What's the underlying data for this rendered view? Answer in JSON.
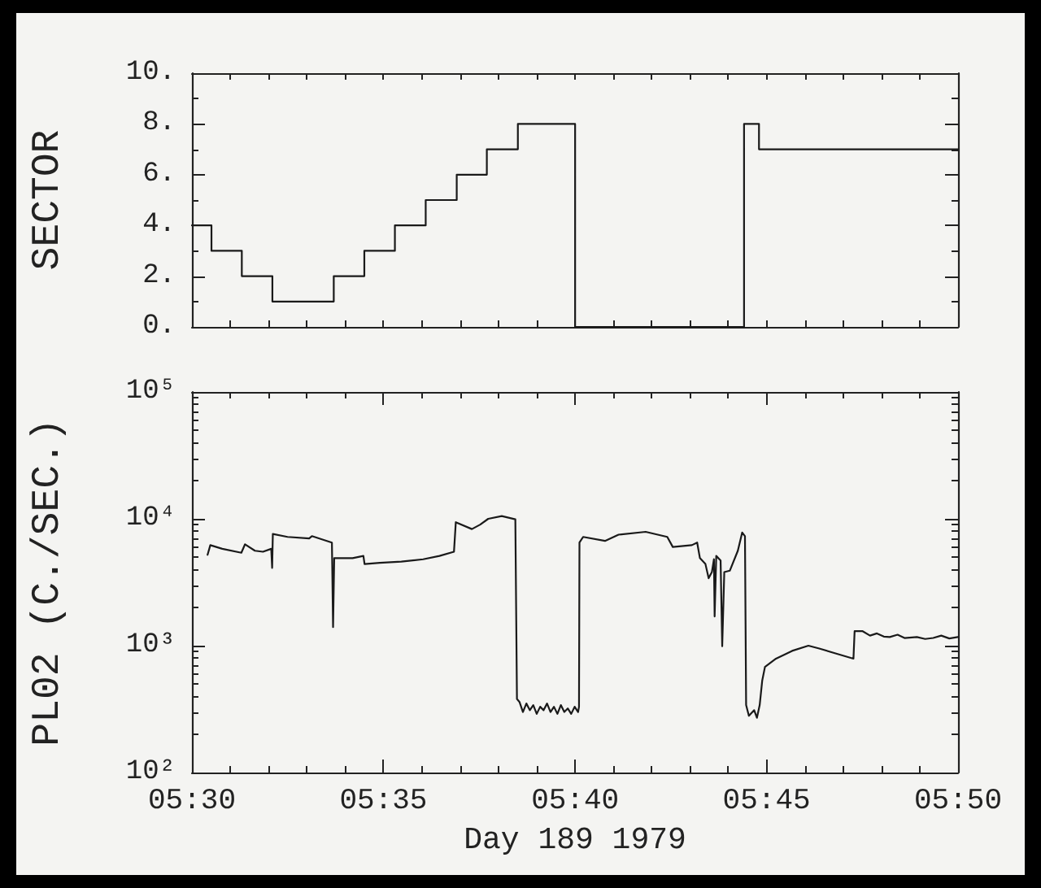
{
  "chart_data": [
    {
      "type": "step",
      "ylabel": "SECTOR",
      "color": "#1a1a1a",
      "tick_labels": "y",
      "x": [
        5.5,
        5.5085,
        5.5217,
        5.535,
        5.5617,
        5.575,
        5.5883,
        5.6017,
        5.6152,
        5.6283,
        5.6418,
        5.6667,
        5.7402,
        5.7467,
        5.8333
      ],
      "values": [
        4,
        3,
        2,
        1,
        2,
        3,
        4,
        5,
        6,
        7,
        8,
        0,
        8,
        7,
        7
      ],
      "xlim": [
        5.5,
        5.8333
      ],
      "xticks": [
        {
          "value": 5.5,
          "label": null
        },
        {
          "value": 5.5167,
          "label": null
        },
        {
          "value": 5.5333,
          "label": null
        },
        {
          "value": 5.55,
          "label": null
        },
        {
          "value": 5.5667,
          "label": null
        },
        {
          "value": 5.5833,
          "label": null
        },
        {
          "value": 5.6,
          "label": null
        },
        {
          "value": 5.6167,
          "label": null
        },
        {
          "value": 5.6333,
          "label": null
        },
        {
          "value": 5.65,
          "label": null
        },
        {
          "value": 5.6667,
          "label": null
        },
        {
          "value": 5.6833,
          "label": null
        },
        {
          "value": 5.7,
          "label": null
        },
        {
          "value": 5.7167,
          "label": null
        },
        {
          "value": 5.7333,
          "label": null
        },
        {
          "value": 5.75,
          "label": null
        },
        {
          "value": 5.7667,
          "label": null
        },
        {
          "value": 5.7833,
          "label": null
        },
        {
          "value": 5.8,
          "label": null
        },
        {
          "value": 5.8167,
          "label": null
        },
        {
          "value": 5.8333,
          "label": null
        }
      ],
      "ylim": [
        0,
        10
      ],
      "yticks": [
        {
          "value": 0,
          "label": "0."
        },
        {
          "value": 1,
          "label": null
        },
        {
          "value": 2,
          "label": "2."
        },
        {
          "value": 3,
          "label": null
        },
        {
          "value": 4,
          "label": "4."
        },
        {
          "value": 5,
          "label": null
        },
        {
          "value": 6,
          "label": "6."
        },
        {
          "value": 7,
          "label": null
        },
        {
          "value": 8,
          "label": "8."
        },
        {
          "value": 9,
          "label": null
        },
        {
          "value": 10,
          "label": "10."
        }
      ]
    },
    {
      "type": "line",
      "xlabel": "Day 189 1979",
      "ylabel": "PL02 (C./SEC.)",
      "color": "#1a1a1a",
      "log": true,
      "x": [
        5.5068,
        5.508,
        5.5132,
        5.5215,
        5.5231,
        5.5274,
        5.5309,
        5.5345,
        5.5349,
        5.5352,
        5.5416,
        5.551,
        5.5522,
        5.5609,
        5.5614,
        5.5619,
        5.5699,
        5.5746,
        5.5751,
        5.5817,
        5.5911,
        5.6006,
        5.6077,
        5.614,
        5.6148,
        5.6218,
        5.6254,
        5.6289,
        5.6348,
        5.6407,
        5.6414,
        5.6425,
        5.644,
        5.6455,
        5.647,
        5.6485,
        5.65,
        5.6515,
        5.653,
        5.6545,
        5.656,
        5.6575,
        5.659,
        5.6605,
        5.662,
        5.6635,
        5.665,
        5.6665,
        5.668,
        5.6684,
        5.6686,
        5.6702,
        5.6797,
        5.6856,
        5.6974,
        5.7068,
        5.7092,
        5.7175,
        5.7198,
        5.721,
        5.7234,
        5.7248,
        5.7262,
        5.7271,
        5.7274,
        5.7281,
        5.73,
        5.7307,
        5.7316,
        5.734,
        5.7375,
        5.7394,
        5.7406,
        5.7411,
        5.7423,
        5.7446,
        5.7458,
        5.747,
        5.7481,
        5.7493,
        5.7541,
        5.7611,
        5.7682,
        5.7729,
        5.78,
        5.7878,
        5.7883,
        5.7918,
        5.795,
        5.798,
        5.801,
        5.8036,
        5.807,
        5.81,
        5.8154,
        5.819,
        5.8225,
        5.826,
        5.8295,
        5.8332
      ],
      "values": [
        5200,
        6200,
        5800,
        5400,
        6300,
        5600,
        5500,
        5800,
        4100,
        7600,
        7200,
        7000,
        7300,
        6500,
        1400,
        4900,
        4900,
        5100,
        4400,
        4500,
        4600,
        4800,
        5100,
        5500,
        9400,
        8300,
        9000,
        10000,
        10500,
        9900,
        380,
        360,
        300,
        350,
        310,
        340,
        290,
        330,
        310,
        350,
        300,
        330,
        290,
        340,
        300,
        320,
        290,
        330,
        300,
        330,
        6500,
        7200,
        6700,
        7500,
        7900,
        7200,
        6000,
        6200,
        6500,
        4900,
        4400,
        3400,
        3800,
        4800,
        1700,
        5100,
        4700,
        990,
        3800,
        3900,
        5600,
        7800,
        7300,
        340,
        280,
        310,
        270,
        340,
        530,
        680,
        790,
        910,
        1000,
        950,
        870,
        790,
        1300,
        1300,
        1200,
        1250,
        1180,
        1170,
        1220,
        1150,
        1170,
        1130,
        1150,
        1200,
        1140,
        1170
      ],
      "xlim": [
        5.5,
        5.8333
      ],
      "xticks": [
        {
          "value": 5.5,
          "label": "05:30"
        },
        {
          "value": 5.5167,
          "label": null
        },
        {
          "value": 5.5333,
          "label": null
        },
        {
          "value": 5.55,
          "label": null
        },
        {
          "value": 5.5667,
          "label": null
        },
        {
          "value": 5.5833,
          "label": "05:35"
        },
        {
          "value": 5.6,
          "label": null
        },
        {
          "value": 5.6167,
          "label": null
        },
        {
          "value": 5.6333,
          "label": null
        },
        {
          "value": 5.65,
          "label": null
        },
        {
          "value": 5.6667,
          "label": "05:40"
        },
        {
          "value": 5.6833,
          "label": null
        },
        {
          "value": 5.7,
          "label": null
        },
        {
          "value": 5.7167,
          "label": null
        },
        {
          "value": 5.7333,
          "label": null
        },
        {
          "value": 5.75,
          "label": "05:45"
        },
        {
          "value": 5.7667,
          "label": null
        },
        {
          "value": 5.7833,
          "label": null
        },
        {
          "value": 5.8,
          "label": null
        },
        {
          "value": 5.8167,
          "label": null
        },
        {
          "value": 5.8333,
          "label": "05:50"
        }
      ],
      "ylim": [
        100,
        100000
      ],
      "yticks": [
        {
          "value": 100,
          "label": "10²"
        },
        {
          "value": 200,
          "label": null
        },
        {
          "value": 300,
          "label": null
        },
        {
          "value": 400,
          "label": null
        },
        {
          "value": 500,
          "label": null
        },
        {
          "value": 600,
          "label": null
        },
        {
          "value": 700,
          "label": null
        },
        {
          "value": 800,
          "label": null
        },
        {
          "value": 900,
          "label": null
        },
        {
          "value": 1000,
          "label": "10³"
        },
        {
          "value": 2000,
          "label": null
        },
        {
          "value": 3000,
          "label": null
        },
        {
          "value": 4000,
          "label": null
        },
        {
          "value": 5000,
          "label": null
        },
        {
          "value": 6000,
          "label": null
        },
        {
          "value": 7000,
          "label": null
        },
        {
          "value": 8000,
          "label": null
        },
        {
          "value": 9000,
          "label": null
        },
        {
          "value": 10000,
          "label": "10⁴"
        },
        {
          "value": 20000,
          "label": null
        },
        {
          "value": 30000,
          "label": null
        },
        {
          "value": 40000,
          "label": null
        },
        {
          "value": 50000,
          "label": null
        },
        {
          "value": 60000,
          "label": null
        },
        {
          "value": 70000,
          "label": null
        },
        {
          "value": 80000,
          "label": null
        },
        {
          "value": 90000,
          "label": null
        },
        {
          "value": 100000,
          "label": "10⁵"
        }
      ]
    }
  ]
}
